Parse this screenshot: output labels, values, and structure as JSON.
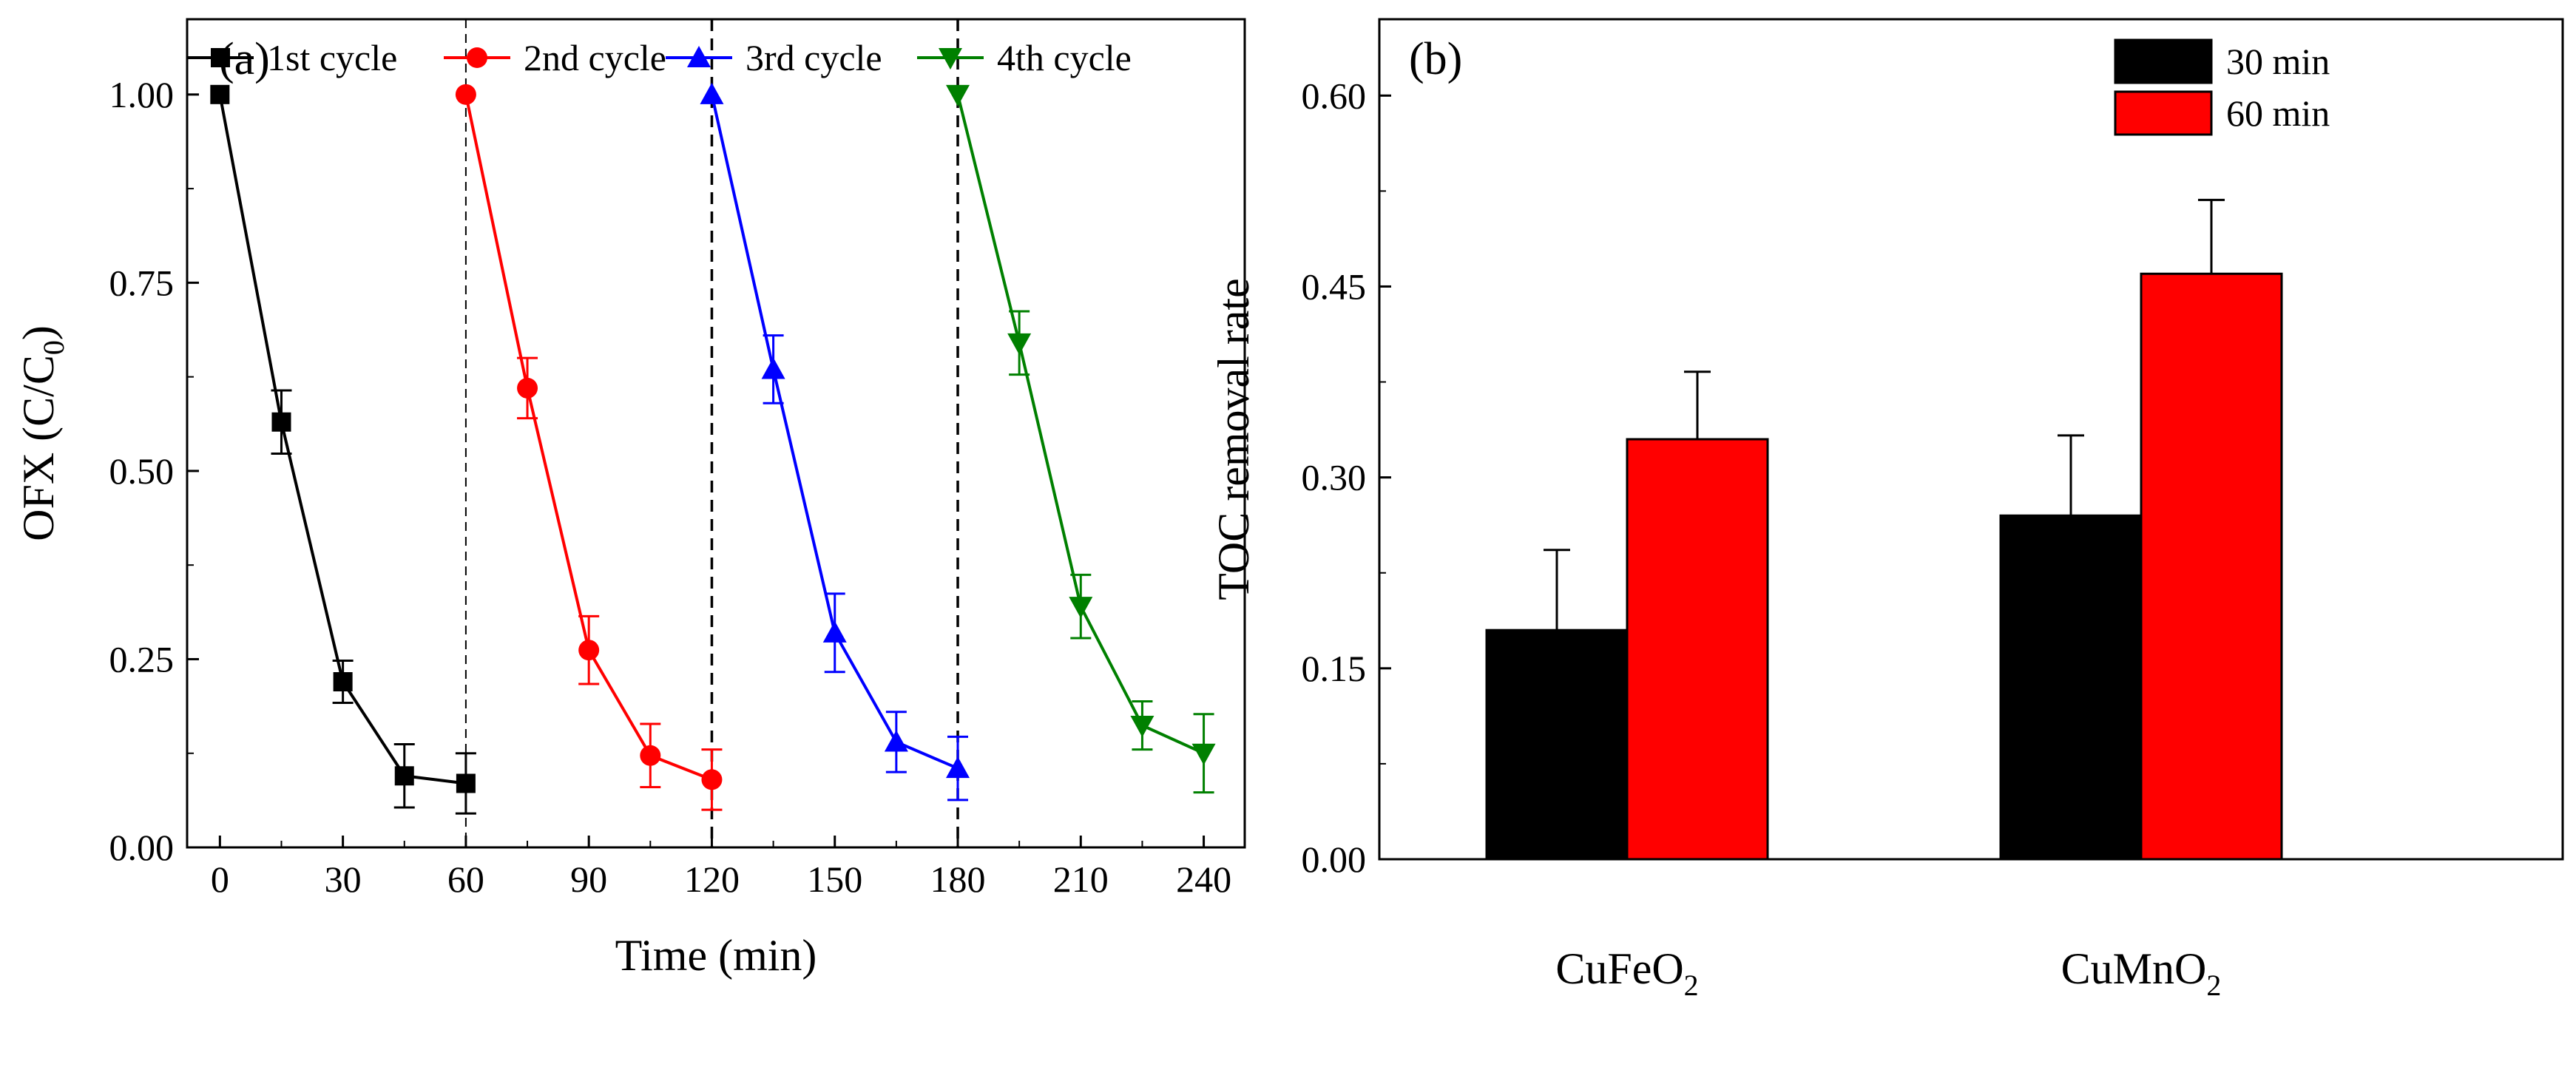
{
  "chart_data": [
    {
      "type": "line",
      "panel_label": "(a)",
      "xlabel": "Time (min)",
      "ylabel_main": "OFX (C/C",
      "ylabel_sub": "0",
      "ylabel_close": ")",
      "xlim": [
        -8,
        250
      ],
      "ylim": [
        0,
        1.1
      ],
      "xticks": [
        0,
        30,
        60,
        90,
        120,
        150,
        180,
        210,
        240
      ],
      "yticks": [
        0.0,
        0.25,
        0.5,
        0.75,
        1.0
      ],
      "ytick_labels": [
        "0.00",
        "0.25",
        "0.50",
        "0.75",
        "1.00"
      ],
      "cycle_dividers": [
        60,
        120,
        180
      ],
      "grid": false,
      "legend_position": "top",
      "series": [
        {
          "name": "1st cycle",
          "color": "#000000",
          "marker": "square",
          "x": [
            0,
            15,
            30,
            45,
            60
          ],
          "y": [
            1.0,
            0.565,
            0.22,
            0.095,
            0.085
          ],
          "err": [
            0,
            0.042,
            0.028,
            0.042,
            0.04
          ]
        },
        {
          "name": "2nd cycle",
          "color": "#ff0000",
          "marker": "circle",
          "x": [
            60,
            75,
            90,
            105,
            120
          ],
          "y": [
            1.0,
            0.61,
            0.262,
            0.122,
            0.09
          ],
          "err": [
            0,
            0.04,
            0.045,
            0.042,
            0.04
          ]
        },
        {
          "name": "3rd cycle",
          "color": "#0000ff",
          "marker": "triangle-up",
          "x": [
            120,
            135,
            150,
            165,
            180
          ],
          "y": [
            1.0,
            0.635,
            0.285,
            0.14,
            0.105
          ],
          "err": [
            0,
            0.045,
            0.052,
            0.04,
            0.042
          ]
        },
        {
          "name": "4th cycle",
          "color": "#008000",
          "marker": "triangle-down",
          "x": [
            180,
            195,
            210,
            225,
            240
          ],
          "y": [
            1.0,
            0.67,
            0.32,
            0.162,
            0.125
          ],
          "err": [
            0,
            0.042,
            0.042,
            0.032,
            0.052
          ]
        }
      ]
    },
    {
      "type": "bar",
      "panel_label": "(b)",
      "ylabel": "TOC removal rate",
      "ylim": [
        0,
        0.66
      ],
      "yticks": [
        0.0,
        0.15,
        0.3,
        0.45,
        0.6
      ],
      "ytick_labels": [
        "0.00",
        "0.15",
        "0.30",
        "0.45",
        "0.60"
      ],
      "categories": [
        {
          "main": "CuFeO",
          "sub": "2"
        },
        {
          "main": "CuMnO",
          "sub": "2"
        }
      ],
      "grid": false,
      "legend_position": "top-right",
      "series": [
        {
          "name": "30 min",
          "color": "#000000",
          "values": [
            0.18,
            0.27
          ],
          "err": [
            0.063,
            0.063
          ]
        },
        {
          "name": "60 min",
          "color": "#ff0000",
          "values": [
            0.33,
            0.46
          ],
          "err": [
            0.053,
            0.058
          ]
        }
      ]
    }
  ]
}
